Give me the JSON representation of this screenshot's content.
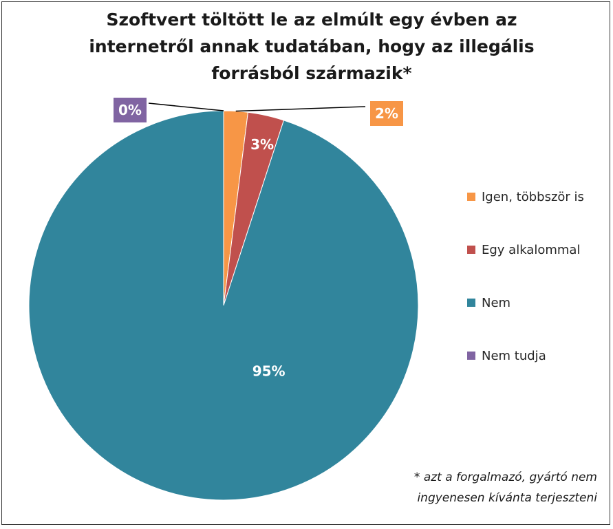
{
  "chart_data": {
    "type": "pie",
    "title_lines": [
      "Szoftvert töltött le az elmúlt egy évben az",
      "internetről annak tudatában, hogy az illegális",
      "forrásból származik*"
    ],
    "categories": [
      "Igen, többször is",
      "Egy alkalommal",
      "Nem",
      "Nem tudja"
    ],
    "values": [
      2,
      3,
      95,
      0
    ],
    "data_labels": [
      "2%",
      "3%",
      "95%",
      "0%"
    ],
    "colors": [
      "#F79646",
      "#C0504D",
      "#31859C",
      "#8064A2"
    ],
    "legend_position": "right",
    "start_angle": "12 o'clock, clockwise"
  },
  "footnote_lines": [
    "* azt a forgalmazó, gyártó nem",
    "ingyenesen kívánta terjeszteni"
  ]
}
